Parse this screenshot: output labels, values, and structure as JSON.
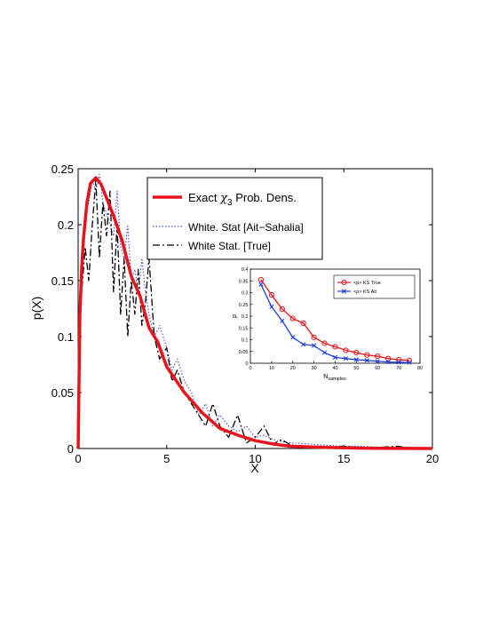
{
  "chart_data": [
    {
      "type": "line",
      "title": "",
      "xlabel": "X",
      "ylabel": "p(X)",
      "xlim": [
        0,
        20
      ],
      "ylim": [
        0,
        0.25
      ],
      "xticks": [
        0,
        5,
        10,
        15,
        20
      ],
      "yticks": [
        0,
        0.05,
        0.1,
        0.15,
        0.2,
        0.25
      ],
      "grid": false,
      "legend_position": "top-right",
      "legend": [
        {
          "prefix": "Exact ",
          "chi": "χ",
          "sub": "3",
          "suffix": " Prob. Dens.",
          "color": "#e8141c",
          "style": "solid"
        },
        {
          "text": "White. Stat [Ait−Sahalia]",
          "color": "#4a4ae0",
          "style": "dotted"
        },
        {
          "text": "White Stat. [True]",
          "color": "#000000",
          "style": "dashdot"
        }
      ],
      "series": [
        {
          "name": "Exact χ3 Prob. Dens.",
          "color": "#e8141c",
          "x": [
            0,
            0.1,
            0.2,
            0.3,
            0.5,
            0.7,
            1.0,
            1.3,
            1.6,
            2.0,
            2.5,
            3.0,
            3.5,
            4.0,
            4.5,
            5.0,
            6.0,
            7.0,
            8.0,
            9.0,
            10.0,
            11.0,
            12.0,
            14.0,
            16.0,
            18.0,
            20.0
          ],
          "y": [
            0,
            0.12,
            0.161,
            0.187,
            0.22,
            0.237,
            0.242,
            0.236,
            0.224,
            0.208,
            0.185,
            0.154,
            0.136,
            0.108,
            0.095,
            0.073,
            0.05,
            0.032,
            0.018,
            0.012,
            0.007,
            0.004,
            0.002,
            0.001,
            0.0003,
            0.0001,
            0.0
          ]
        },
        {
          "name": "White. Stat [Ait−Sahalia]",
          "color": "#4a4ae0",
          "x": [
            0,
            0.2,
            0.4,
            0.6,
            0.8,
            1.0,
            1.2,
            1.4,
            1.6,
            1.8,
            2.0,
            2.2,
            2.4,
            2.6,
            2.8,
            3.0,
            3.2,
            3.4,
            3.6,
            3.8,
            4.0,
            4.3,
            4.6,
            5.0,
            5.3,
            5.6,
            6.0,
            6.4,
            6.8,
            7.2,
            7.6,
            8.0,
            8.5,
            9.0,
            9.5,
            10.0,
            10.5,
            11.0,
            11.5,
            12.0,
            13.0,
            14.0,
            15.0,
            16.0,
            17.0,
            18.0,
            19.0,
            20.0
          ],
          "y": [
            0.08,
            0.16,
            0.21,
            0.22,
            0.24,
            0.23,
            0.245,
            0.22,
            0.21,
            0.2,
            0.19,
            0.23,
            0.18,
            0.17,
            0.2,
            0.15,
            0.16,
            0.14,
            0.17,
            0.14,
            0.12,
            0.1,
            0.11,
            0.09,
            0.07,
            0.08,
            0.06,
            0.05,
            0.03,
            0.04,
            0.02,
            0.03,
            0.02,
            0.015,
            0.02,
            0.01,
            0.012,
            0.008,
            0.006,
            0.005,
            0.004,
            0.003,
            0.002,
            0.002,
            0.001,
            0.001,
            0.001,
            0.0
          ]
        },
        {
          "name": "White Stat. [True]",
          "color": "#000000",
          "x": [
            0,
            0.2,
            0.4,
            0.6,
            0.8,
            1.0,
            1.2,
            1.4,
            1.6,
            1.8,
            2.0,
            2.2,
            2.4,
            2.6,
            2.8,
            3.0,
            3.2,
            3.4,
            3.6,
            3.8,
            4.0,
            4.3,
            4.6,
            5.0,
            5.3,
            5.6,
            6.0,
            6.4,
            6.8,
            7.2,
            7.6,
            8.0,
            8.5,
            9.0,
            9.5,
            10.0,
            10.5,
            11.0,
            11.5,
            12.0,
            13.0,
            14.0,
            15.0,
            16.0,
            17.0,
            18.0,
            19.0,
            20.0
          ],
          "y": [
            0.08,
            0.14,
            0.18,
            0.15,
            0.2,
            0.24,
            0.17,
            0.22,
            0.19,
            0.23,
            0.14,
            0.2,
            0.12,
            0.17,
            0.1,
            0.15,
            0.12,
            0.16,
            0.11,
            0.13,
            0.17,
            0.1,
            0.08,
            0.09,
            0.06,
            0.07,
            0.05,
            0.04,
            0.03,
            0.02,
            0.04,
            0.02,
            0.01,
            0.03,
            0.005,
            0.01,
            0.02,
            0.004,
            0.008,
            0.003,
            0.002,
            0.001,
            0.002,
            0.001,
            0.001,
            0.002,
            0.0,
            0.0
          ]
        }
      ]
    },
    {
      "type": "line",
      "title": "",
      "xlabel_main": "N",
      "xlabel_sub": "samples",
      "ylabel": "p",
      "xlim": [
        0,
        80
      ],
      "ylim": [
        0,
        0.4
      ],
      "xticks": [
        0,
        10,
        20,
        30,
        40,
        50,
        60,
        70,
        80
      ],
      "yticks": [
        0,
        0.05,
        0.1,
        0.15,
        0.2,
        0.25,
        0.3,
        0.35,
        0.4
      ],
      "grid": false,
      "legend_position": "top-right",
      "series": [
        {
          "name": "<p> KS True",
          "color": "#e8141c",
          "marker": "circle",
          "x": [
            5,
            10,
            15,
            20,
            25,
            30,
            35,
            40,
            45,
            50,
            55,
            60,
            65,
            70,
            75
          ],
          "y": [
            0.355,
            0.29,
            0.23,
            0.19,
            0.17,
            0.11,
            0.085,
            0.07,
            0.055,
            0.045,
            0.035,
            0.03,
            0.02,
            0.015,
            0.012
          ]
        },
        {
          "name": "<p> KS Ait",
          "color": "#1f3fe0",
          "marker": "x",
          "x": [
            5,
            10,
            15,
            20,
            25,
            30,
            35,
            40,
            45,
            50,
            55,
            60,
            65,
            70,
            75
          ],
          "y": [
            0.335,
            0.24,
            0.18,
            0.11,
            0.08,
            0.075,
            0.045,
            0.025,
            0.02,
            0.015,
            0.012,
            0.008,
            0.005,
            0.004,
            0.003
          ]
        }
      ]
    }
  ]
}
